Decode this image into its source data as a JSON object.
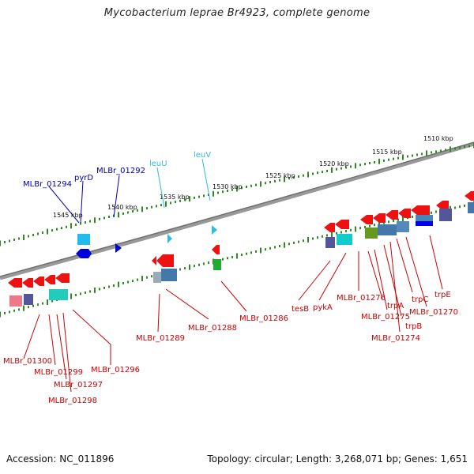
{
  "title": "Mycobacterium leprae Br4923, complete genome",
  "footer": {
    "accession": "Accession: NC_011896",
    "summary": "Topology: circular; Length: 3,268,071 bp; Genes: 1,651"
  },
  "colors": {
    "ruler_dots": "#2e8b22",
    "backbone": "#888888",
    "label_red": "#cc0000",
    "label_blue": "#0000aa",
    "label_cyan": "#33bbdd"
  },
  "ruler_labels": [
    "1510 kbp",
    "1515 kbp",
    "1520 kbp",
    "1525 kbp",
    "1530 kbp",
    "1535 kbp",
    "1540 kbp",
    "1545 kbp"
  ],
  "gene_labels_top": [
    {
      "text": "MLBr_01294",
      "color": "blue"
    },
    {
      "text": "pyrD",
      "color": "blue"
    },
    {
      "text": "MLBr_01292",
      "color": "blue"
    },
    {
      "text": "leuU",
      "color": "cyan"
    },
    {
      "text": "leuV",
      "color": "cyan"
    }
  ],
  "gene_labels_bottom": [
    "tesB",
    "pykA",
    "MLBr_01276",
    "trpA",
    "MLBr_01275",
    "trpB",
    "MLBr_01274",
    "trpC",
    "MLBr_01270",
    "trpE",
    "MLBr_01286",
    "MLBr_01288",
    "MLBr_01289",
    "MLBr_01296",
    "MLBr_01300",
    "MLBr_01299",
    "MLBr_01297",
    "MLBr_01298"
  ]
}
